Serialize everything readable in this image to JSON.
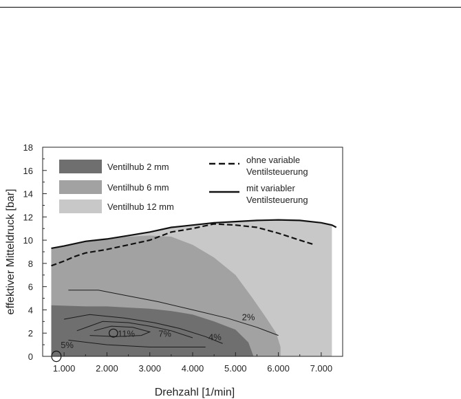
{
  "chart_data": {
    "type": "area",
    "xlabel": "Drehzahl [1/min]",
    "ylabel": "effektiver Mitteldruck [bar]",
    "xlim": [
      500,
      7500
    ],
    "ylim": [
      0,
      18
    ],
    "x_ticks": [
      1000,
      2000,
      3000,
      4000,
      5000,
      6000,
      7000
    ],
    "x_tick_labels": [
      "1.000",
      "2.000",
      "3.000",
      "4.000",
      "5.000",
      "6.000",
      "7.000"
    ],
    "y_ticks": [
      0,
      2,
      4,
      6,
      8,
      10,
      12,
      14,
      16,
      18
    ],
    "y_tick_labels": [
      "0",
      "2",
      "4",
      "6",
      "8",
      "10",
      "12",
      "14",
      "16",
      "18"
    ],
    "grid": false,
    "legend_position": "top",
    "regions": [
      {
        "name": "Ventilhub 12 mm",
        "color": "#c8c8c8",
        "upper": [
          [
            700,
            9.3
          ],
          [
            1000,
            9.5
          ],
          [
            1500,
            9.9
          ],
          [
            2000,
            10.1
          ],
          [
            2500,
            10.4
          ],
          [
            3000,
            10.7
          ],
          [
            3500,
            11.1
          ],
          [
            4000,
            11.3
          ],
          [
            4500,
            11.5
          ],
          [
            5000,
            11.6
          ],
          [
            5500,
            11.7
          ],
          [
            6000,
            11.75
          ],
          [
            6500,
            11.7
          ],
          [
            7000,
            11.5
          ],
          [
            7250,
            11.3
          ]
        ],
        "lower_y": 0
      },
      {
        "name": "Ventilhub 6 mm",
        "color": "#a2a2a2",
        "upper": [
          [
            700,
            9.3
          ],
          [
            1000,
            9.5
          ],
          [
            1500,
            9.9
          ],
          [
            2000,
            10.1
          ],
          [
            2500,
            10.3
          ],
          [
            3000,
            10.4
          ],
          [
            3500,
            10.3
          ],
          [
            4000,
            9.6
          ],
          [
            4500,
            8.5
          ],
          [
            5000,
            7.0
          ],
          [
            5400,
            5.0
          ],
          [
            5700,
            3.4
          ],
          [
            5950,
            2.0
          ],
          [
            6050,
            0.8
          ],
          [
            6050,
            0
          ]
        ],
        "lower_y": 0
      },
      {
        "name": "Ventilhub 2 mm",
        "color": "#6f6f6f",
        "upper": [
          [
            700,
            4.4
          ],
          [
            1500,
            4.3
          ],
          [
            2000,
            4.3
          ],
          [
            2500,
            4.2
          ],
          [
            3000,
            4.1
          ],
          [
            3500,
            3.9
          ],
          [
            4000,
            3.6
          ],
          [
            4500,
            3.0
          ],
          [
            5000,
            2.3
          ],
          [
            5300,
            1.2
          ],
          [
            5420,
            0
          ]
        ],
        "lower_y": 0
      }
    ],
    "series": [
      {
        "name": "ohne variable Ventilsteuerung",
        "style": "dashed",
        "x": [
          700,
          1000,
          1250,
          1500,
          2000,
          2500,
          3000,
          3500,
          4000,
          4500,
          5000,
          5500,
          6000,
          6500,
          6850
        ],
        "y": [
          7.8,
          8.2,
          8.6,
          8.9,
          9.2,
          9.6,
          10.0,
          10.7,
          11.0,
          11.4,
          11.3,
          11.1,
          10.6,
          10.0,
          9.6
        ]
      },
      {
        "name": "mit variabler Ventilsteuerung",
        "style": "solid",
        "x": [
          700,
          1000,
          1500,
          2000,
          2500,
          3000,
          3500,
          4000,
          4500,
          5000,
          5500,
          6000,
          6500,
          7000,
          7250,
          7350
        ],
        "y": [
          9.3,
          9.5,
          9.9,
          10.1,
          10.4,
          10.7,
          11.1,
          11.3,
          11.5,
          11.6,
          11.7,
          11.75,
          11.7,
          11.5,
          11.3,
          11.1
        ]
      }
    ],
    "contours": [
      {
        "label": "2%",
        "points": [
          [
            1100,
            5.7
          ],
          [
            1800,
            5.7
          ],
          [
            2500,
            5.2
          ],
          [
            3200,
            4.7
          ],
          [
            4000,
            4.0
          ],
          [
            4800,
            3.3
          ],
          [
            5500,
            2.5
          ],
          [
            6000,
            1.8
          ]
        ],
        "label_at": [
          5150,
          3.1
        ]
      },
      {
        "label": "4%",
        "points": [
          [
            1000,
            3.2
          ],
          [
            1600,
            3.6
          ],
          [
            2400,
            3.3
          ],
          [
            3100,
            2.9
          ],
          [
            3700,
            2.4
          ],
          [
            4300,
            1.7
          ],
          [
            4700,
            1.1
          ]
        ],
        "label_at": [
          4370,
          1.4
        ]
      },
      {
        "label": "7%",
        "points": [
          [
            1300,
            2.2
          ],
          [
            1900,
            3.0
          ],
          [
            2500,
            2.9
          ],
          [
            3000,
            2.6
          ],
          [
            3500,
            2.2
          ],
          [
            4000,
            1.6
          ]
        ],
        "label_at": [
          3200,
          1.7
        ]
      },
      {
        "label": "11%",
        "points": [
          [
            1700,
            2.2
          ],
          [
            2100,
            2.6
          ],
          [
            2600,
            2.5
          ],
          [
            3000,
            2.1
          ],
          [
            2800,
            1.8
          ],
          [
            2200,
            1.7
          ],
          [
            1600,
            1.8
          ]
        ],
        "label_at": [
          2250,
          1.7
        ]
      },
      {
        "label": "5%",
        "points": [
          [
            1100,
            1.4
          ],
          [
            2000,
            1.0
          ],
          [
            3000,
            0.8
          ],
          [
            3800,
            0.8
          ],
          [
            4300,
            0.8
          ]
        ],
        "label_at": [
          920,
          0.7
        ]
      }
    ],
    "markers": [
      {
        "type": "ellipse",
        "x": 2150,
        "y": 2.0,
        "rx": 100,
        "ry": 0.35
      },
      {
        "type": "ellipse",
        "x": 820,
        "y": 0.0,
        "rx": 110,
        "ry": 0.45
      }
    ],
    "legend": {
      "shaded": [
        {
          "label": "Ventilhub   2 mm",
          "color": "#6f6f6f"
        },
        {
          "label": "Ventilhub   6 mm",
          "color": "#a2a2a2"
        },
        {
          "label": "Ventilhub 12 mm",
          "color": "#c8c8c8"
        }
      ],
      "lines": [
        {
          "label_line1": "ohne variable",
          "label_line2": "Ventilsteuerung",
          "style": "dashed"
        },
        {
          "label_line1": "mit variabler",
          "label_line2": "Ventilsteuerung",
          "style": "solid"
        }
      ]
    }
  }
}
